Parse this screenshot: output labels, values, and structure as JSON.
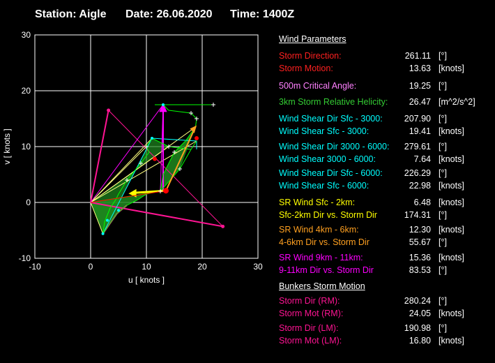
{
  "header": {
    "station": "Station: Aigle",
    "date": "Date: 26.06.2020",
    "time": "Time: 1400Z"
  },
  "chart_data": {
    "type": "hodograph",
    "xlabel": "u  [ knots ]",
    "ylabel": "v  [ knots ]",
    "xlim": [
      -10,
      30
    ],
    "ylim": [
      -10,
      30
    ],
    "xticks": [
      "-10",
      "0",
      "10",
      "20",
      "30"
    ],
    "yticks": [
      "-10",
      "0",
      "10",
      "20",
      "30"
    ],
    "grid": true,
    "hodograph_line": [
      [
        0,
        0
      ],
      [
        12.5,
        2
      ],
      [
        16,
        6
      ],
      [
        18,
        9.5
      ],
      [
        19,
        11
      ],
      [
        18,
        9.5
      ],
      [
        14,
        10
      ],
      [
        11,
        11.5
      ],
      [
        10,
        10
      ],
      [
        10.5,
        9
      ],
      [
        9,
        7
      ],
      [
        6.5,
        4
      ],
      [
        5,
        1.5
      ],
      [
        4.5,
        0.5
      ],
      [
        3.5,
        -1
      ],
      [
        2.5,
        -3.5
      ],
      [
        2.2,
        -5.6
      ],
      [
        4.7,
        -2
      ],
      [
        6.5,
        -0.5
      ],
      [
        8.5,
        0.5
      ],
      [
        10,
        1.5
      ],
      [
        12.5,
        2
      ],
      [
        13,
        5
      ],
      [
        14,
        7
      ],
      [
        15,
        9
      ],
      [
        17,
        11
      ],
      [
        18.8,
        13.5
      ],
      [
        19,
        15
      ],
      [
        18,
        16
      ],
      [
        14,
        16.5
      ],
      [
        13,
        17.5
      ],
      [
        11.5,
        17.5
      ],
      [
        13,
        17.5
      ],
      [
        16,
        17.5
      ],
      [
        22,
        17.5
      ]
    ],
    "storm_motion_point": [
      13.5,
      2.1
    ],
    "bunkers_rm_point": [
      23.7,
      -4.3
    ],
    "bunkers_lm_point": [
      3.2,
      16.5
    ],
    "srh_shading_color": "#1f8a1f",
    "colors": {
      "hodograph": "#00ff00",
      "bunkers": "#ff1493",
      "critical": "#ff00ff",
      "shear": "#00ffff",
      "sr2km": "#ffff00",
      "sr4_6": "#ffa020",
      "storm": "#ff0000"
    }
  },
  "panel": {
    "wind_title": "Wind Parameters",
    "rows": [
      {
        "label": "Storm Direction:",
        "value": "261.11",
        "unit": "[°]",
        "color": "#ff2020"
      },
      {
        "label": "Storm Motion:",
        "value": "13.63",
        "unit": "[knots]",
        "color": "#ff2020"
      },
      {
        "label": "500m Critical Angle:",
        "value": "19.25",
        "unit": "[°]",
        "color": "#ff80ff"
      },
      {
        "label": "3km Storm Relative Helicity:",
        "value": "26.47",
        "unit": "[m^2/s^2]",
        "color": "#33cc33"
      },
      {
        "label": "Wind Shear Dir Sfc - 3000:",
        "value": "207.90",
        "unit": "[°]",
        "color": "#00ffff"
      },
      {
        "label": "Wind Shear Sfc - 3000:",
        "value": "19.41",
        "unit": "[knots]",
        "color": "#00ffff"
      },
      {
        "label": "Wind Shear Dir 3000 - 6000:",
        "value": "279.61",
        "unit": "[°]",
        "color": "#00ffff"
      },
      {
        "label": "Wind Shear 3000 - 6000:",
        "value": "7.64",
        "unit": "[knots]",
        "color": "#00ffff"
      },
      {
        "label": "Wind Shear Dir Sfc - 6000:",
        "value": "226.29",
        "unit": "[°]",
        "color": "#00ffff"
      },
      {
        "label": "Wind Shear Sfc - 6000:",
        "value": "22.98",
        "unit": "[knots]",
        "color": "#00ffff"
      },
      {
        "label": "SR Wind Sfc - 2km:",
        "value": "6.48",
        "unit": "[knots]",
        "color": "#ffff00"
      },
      {
        "label": "Sfc-2km Dir vs. Storm Dir",
        "value": "174.31",
        "unit": "[°]",
        "color": "#ffff00"
      },
      {
        "label": "SR Wind 4km - 6km:",
        "value": "12.30",
        "unit": "[knots]",
        "color": "#ffa020"
      },
      {
        "label": "4-6km Dir vs. Storm Dir",
        "value": "55.67",
        "unit": "[°]",
        "color": "#ffa020"
      },
      {
        "label": "SR Wind 9km - 11km:",
        "value": "15.36",
        "unit": "[knots]",
        "color": "#ff00ff"
      },
      {
        "label": "9-11km Dir vs. Storm Dir",
        "value": "83.53",
        "unit": "[°]",
        "color": "#ff00ff"
      }
    ],
    "bunkers_title": "Bunkers Storm Motion",
    "bunkers_rows": [
      {
        "label": "Storm Dir (RM):",
        "value": "280.24",
        "unit": "[°]",
        "color": "#ff1493"
      },
      {
        "label": "Storm Mot (RM):",
        "value": "24.05",
        "unit": "[knots]",
        "color": "#ff1493"
      },
      {
        "label": "Storm Dir (LM):",
        "value": "190.98",
        "unit": "[°]",
        "color": "#ff1493"
      },
      {
        "label": "Storm Mot (LM):",
        "value": "16.80",
        "unit": "[knots]",
        "color": "#ff1493"
      }
    ]
  }
}
